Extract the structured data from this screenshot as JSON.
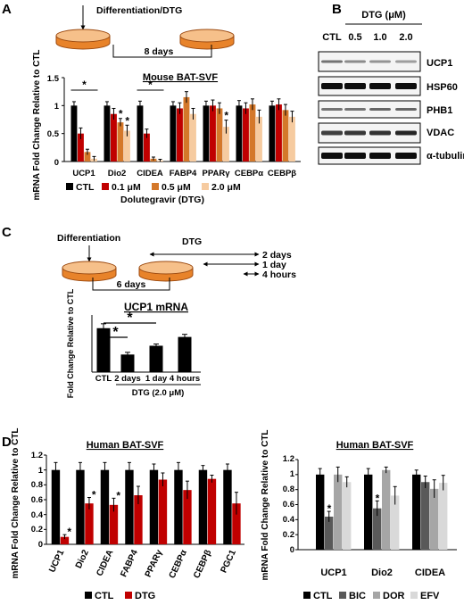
{
  "panels": {
    "A": "A",
    "B": "B",
    "C": "C",
    "D": "D"
  },
  "colors": {
    "black": "#000000",
    "red": "#c00000",
    "orange": "#d4782a",
    "peach": "#f6cba0",
    "dark_gray": "#595959",
    "gray": "#a6a6a6",
    "light_gray": "#d9d9d9",
    "dish_fill": "#e8832a",
    "dish_edge": "#9c4a10",
    "dish_top": "#f6c08a"
  },
  "schematic_a": {
    "label": "Differentiation/DTG",
    "duration": "8 days"
  },
  "schematic_c": {
    "label_diff": "Differentiation",
    "label_dtg": "DTG",
    "duration": "6 days",
    "times": [
      "2 days",
      "1 day",
      "4 hours"
    ]
  },
  "western": {
    "header": "DTG (μM)",
    "lanes": [
      "CTL",
      "0.5",
      "1.0",
      "2.0"
    ],
    "proteins": [
      "UCP1",
      "HSP60",
      "PHB1",
      "VDAC",
      "α-tubulin"
    ]
  },
  "legend_a": {
    "items": [
      "CTL",
      "0.1 μM",
      "0.5 μM",
      "2.0 μM"
    ],
    "caption": "Dolutegravir (DTG)"
  },
  "legend_d1": {
    "items": [
      "CTL",
      "DTG"
    ]
  },
  "legend_d2": {
    "items": [
      "CTL",
      "BIC",
      "DOR",
      "EFV"
    ]
  },
  "chart_data": [
    {
      "panel": "A",
      "type": "bar",
      "title": "Mouse BAT-SVF",
      "ylabel": "mRNA Fold Change Relative to CTL",
      "ylim": [
        0,
        1.5
      ],
      "yticks": [
        "0",
        "0.5",
        "1",
        "1.5"
      ],
      "categories": [
        "UCP1",
        "Dio2",
        "CIDEA",
        "FABP4",
        "PPARγ",
        "CEBPα",
        "CEBPβ"
      ],
      "colors": [
        "#000000",
        "#c00000",
        "#d4782a",
        "#f6cba0"
      ],
      "series": [
        {
          "name": "CTL",
          "values": [
            1.0,
            1.0,
            1.0,
            1.0,
            1.0,
            1.0,
            1.0
          ],
          "err": [
            0.07,
            0.07,
            0.08,
            0.07,
            0.08,
            0.09,
            0.08
          ]
        },
        {
          "name": "0.1 μM",
          "values": [
            0.5,
            0.85,
            0.5,
            0.95,
            1.0,
            0.95,
            1.02
          ],
          "err": [
            0.1,
            0.1,
            0.08,
            0.1,
            0.1,
            0.1,
            0.1
          ]
        },
        {
          "name": "0.5 μM",
          "values": [
            0.17,
            0.7,
            0.05,
            1.15,
            0.95,
            1.02,
            0.92
          ],
          "err": [
            0.05,
            0.07,
            0.03,
            0.1,
            0.1,
            0.1,
            0.1
          ]
        },
        {
          "name": "2.0 μM",
          "values": [
            0.05,
            0.55,
            0.02,
            0.85,
            0.62,
            0.8,
            0.8
          ],
          "err": [
            0.04,
            0.1,
            0.02,
            0.1,
            0.12,
            0.12,
            0.1
          ]
        }
      ],
      "stars": [
        {
          "cat": 1,
          "ser": 2,
          "text": "*"
        },
        {
          "cat": 1,
          "ser": 3,
          "text": "*"
        },
        {
          "cat": 4,
          "ser": 3,
          "text": "*"
        }
      ],
      "sig": [
        {
          "cat": 0,
          "text": "*"
        },
        {
          "cat": 2,
          "text": "*"
        }
      ]
    },
    {
      "panel": "C",
      "type": "bar",
      "title": "UCP1 mRNA",
      "ylabel": "Fold Change Relative to CTL",
      "xlabel": "DTG (2.0 μM)",
      "categories": [
        "CTL",
        "2 days",
        "1 day",
        "4 hours"
      ],
      "values": [
        1.0,
        0.4,
        0.6,
        0.8
      ],
      "err": [
        0.1,
        0.05,
        0.04,
        0.06
      ],
      "color": "#000000",
      "ylim": [
        0,
        1.3
      ],
      "sig": [
        {
          "from": 0,
          "to": 1,
          "text": "*"
        },
        {
          "from": 0,
          "to": 2,
          "text": "*"
        }
      ]
    },
    {
      "panel": "D-left",
      "type": "bar",
      "title": "Human BAT-SVF",
      "ylabel": "mRNA Fold Change Relative to CTL",
      "ylim": [
        0,
        1.2
      ],
      "yticks": [
        "0",
        "0.2",
        "0.4",
        "0.6",
        "0.8",
        "1",
        "1.2"
      ],
      "categories": [
        "UCP1",
        "Dio2",
        "CIDEA",
        "FABP4",
        "PPARγ",
        "CEBPα",
        "CEBPβ",
        "PGC1"
      ],
      "colors": [
        "#000000",
        "#c00000"
      ],
      "series": [
        {
          "name": "CTL",
          "values": [
            1.0,
            1.0,
            1.0,
            1.0,
            1.0,
            1.0,
            1.0,
            1.0
          ],
          "err": [
            0.1,
            0.1,
            0.1,
            0.1,
            0.08,
            0.1,
            0.06,
            0.08
          ]
        },
        {
          "name": "DTG",
          "values": [
            0.1,
            0.55,
            0.53,
            0.66,
            0.87,
            0.73,
            0.88,
            0.55
          ],
          "err": [
            0.03,
            0.08,
            0.09,
            0.12,
            0.09,
            0.12,
            0.05,
            0.15
          ]
        }
      ],
      "stars": [
        {
          "cat": 0,
          "ser": 1,
          "text": "*"
        },
        {
          "cat": 1,
          "ser": 1,
          "text": "*"
        },
        {
          "cat": 2,
          "ser": 1,
          "text": "*"
        }
      ]
    },
    {
      "panel": "D-right",
      "type": "bar",
      "title": "Human BAT-SVF",
      "ylabel": "mRNA Fold Change Relative to CTL",
      "ylim": [
        0,
        1.2
      ],
      "yticks": [
        "0",
        "0.2",
        "0.4",
        "0.6",
        "0.8",
        "1",
        "1.2"
      ],
      "categories": [
        "UCP1",
        "Dio2",
        "CIDEA"
      ],
      "colors": [
        "#000000",
        "#595959",
        "#a6a6a6",
        "#d9d9d9"
      ],
      "series": [
        {
          "name": "CTL",
          "values": [
            1.0,
            1.0,
            1.0
          ],
          "err": [
            0.08,
            0.08,
            0.06
          ]
        },
        {
          "name": "BIC",
          "values": [
            0.44,
            0.55,
            0.9
          ],
          "err": [
            0.07,
            0.1,
            0.08
          ]
        },
        {
          "name": "DOR",
          "values": [
            1.0,
            1.06,
            0.81
          ],
          "err": [
            0.1,
            0.04,
            0.12
          ]
        },
        {
          "name": "EFV",
          "values": [
            0.9,
            0.72,
            0.89
          ],
          "err": [
            0.07,
            0.12,
            0.1
          ]
        }
      ],
      "stars": [
        {
          "cat": 0,
          "ser": 1,
          "text": "*"
        },
        {
          "cat": 1,
          "ser": 1,
          "text": "*"
        }
      ]
    }
  ]
}
